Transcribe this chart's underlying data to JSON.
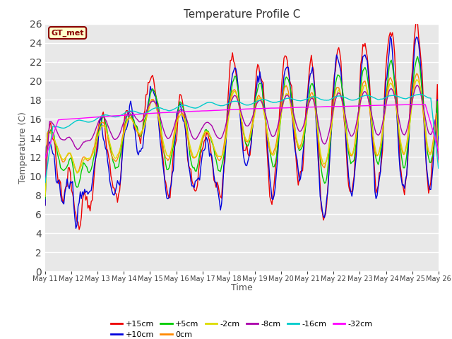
{
  "title": "Temperature Profile C",
  "xlabel": "Time",
  "ylabel": "Temperature (C)",
  "ylim": [
    0,
    26
  ],
  "yticks": [
    0,
    2,
    4,
    6,
    8,
    10,
    12,
    14,
    16,
    18,
    20,
    22,
    24,
    26
  ],
  "bg_color": "#ffffff",
  "plot_bg_color": "#e8e8e8",
  "grid_color": "#cccccc",
  "annotation_text": "GT_met",
  "annotation_bg": "#ffffcc",
  "annotation_border": "#8b0000",
  "series_colors": {
    "+15cm": "#ee0000",
    "+10cm": "#0000dd",
    "+5cm": "#00cc00",
    "0cm": "#ff8800",
    "-2cm": "#dddd00",
    "-8cm": "#aa00aa",
    "-16cm": "#00cccc",
    "-32cm": "#ff00ff"
  },
  "xtick_labels": [
    "May 11",
    "May 12",
    "May 13",
    "May 14",
    "May 15",
    "May 16",
    "May 17",
    "May 18",
    "May 19",
    "May 20",
    "May 21",
    "May 22",
    "May 23",
    "May 24",
    "May 25",
    "May 26"
  ]
}
